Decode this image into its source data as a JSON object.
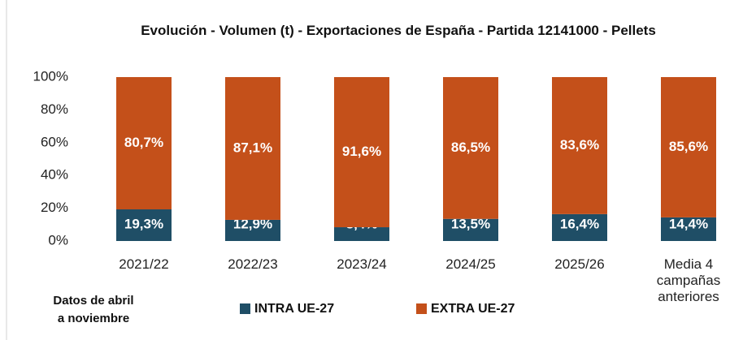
{
  "chart_data": {
    "type": "stacked_bar",
    "title": "Evolución - Volumen (t) - Exportaciones de España - Partida 12141000 - Pellets",
    "categories": [
      "2021/22",
      "2022/23",
      "2023/24",
      "2024/25",
      "2025/26",
      "Media 4 campañas anteriores"
    ],
    "series": [
      {
        "name": "INTRA UE-27",
        "color": "#1f4e66",
        "values": [
          19.3,
          12.9,
          8.4,
          13.5,
          16.4,
          14.4
        ],
        "value_labels": [
          "19,3%",
          "12,9%",
          "8,4%",
          "13,5%",
          "16,4%",
          "14,4%"
        ]
      },
      {
        "name": "EXTRA UE-27",
        "color": "#c4501a",
        "values": [
          80.7,
          87.1,
          91.6,
          86.5,
          83.6,
          85.6
        ],
        "value_labels": [
          "80,7%",
          "87,1%",
          "91,6%",
          "86,5%",
          "83,6%",
          "85,6%"
        ]
      }
    ],
    "ylim": [
      0,
      100
    ],
    "yticks": [
      {
        "value": 0,
        "label": "0%"
      },
      {
        "value": 20,
        "label": "20%"
      },
      {
        "value": 40,
        "label": "40%"
      },
      {
        "value": 60,
        "label": "60%"
      },
      {
        "value": 80,
        "label": "80%"
      },
      {
        "value": 100,
        "label": "100%"
      }
    ],
    "annotations": [
      "Datos de abril",
      "a noviembre"
    ]
  }
}
